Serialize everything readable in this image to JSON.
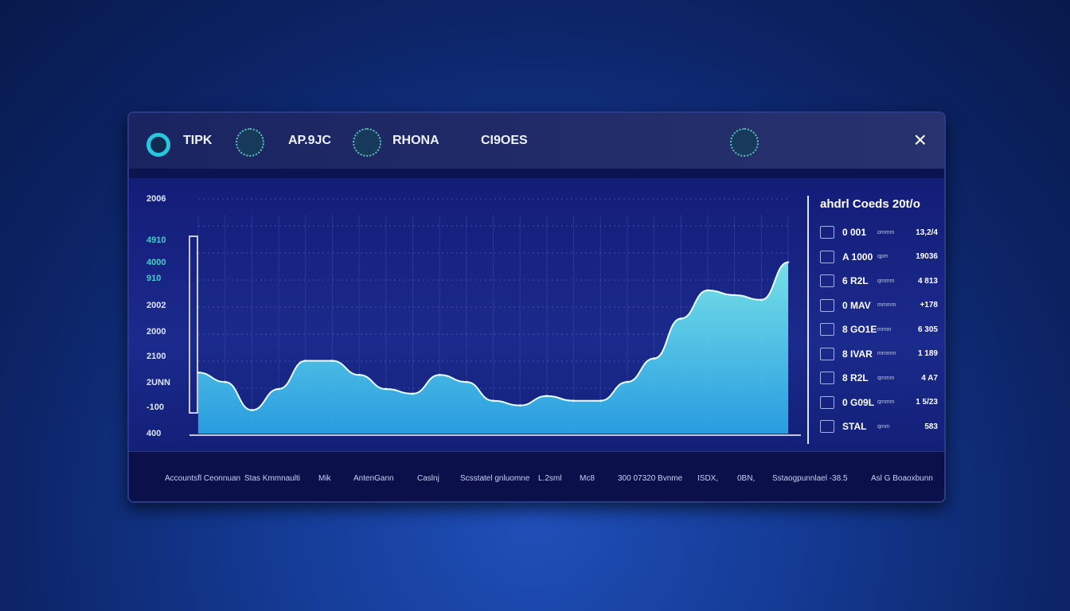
{
  "header": {
    "items": [
      "TIPK",
      "AP.9JC",
      "RHONA",
      "CI9OES"
    ],
    "close_label": "×"
  },
  "y_axis_labels": [
    "2006",
    "4910",
    "4000",
    "910",
    "2002",
    "2000",
    "2100",
    "2UNN",
    "-100",
    "400"
  ],
  "chart_data": {
    "type": "area",
    "title": "",
    "x": [
      0,
      1,
      2,
      3,
      4,
      5,
      6,
      7,
      8,
      9,
      10,
      11,
      12,
      13,
      14,
      15,
      16,
      17,
      18,
      19,
      20,
      21,
      22
    ],
    "values": [
      26,
      22,
      10,
      19,
      31,
      31,
      25,
      19,
      17,
      25,
      22,
      14,
      12,
      16,
      14,
      14,
      22,
      32,
      49,
      61,
      59,
      57,
      73
    ],
    "ylim": [
      0,
      100
    ],
    "grid": true,
    "colors": {
      "fill_top": "#7ef0f0",
      "fill_bottom": "#2aa7e8",
      "accent": "#e060b0"
    }
  },
  "panel": {
    "title": "ahdrl Coeds 20t/o",
    "rows": [
      {
        "name": "0 001",
        "sub": "ommm",
        "value": "13,2/4"
      },
      {
        "name": "A 1000",
        "sub": "qpm",
        "value": "19036"
      },
      {
        "name": "6 R2L",
        "sub": "qmmm",
        "value": "4 813"
      },
      {
        "name": "0 MAV",
        "sub": "mmmm",
        "value": "+178"
      },
      {
        "name": "8 GO1E",
        "sub": "mmm",
        "value": "6 305"
      },
      {
        "name": "8 IVAR",
        "sub": "mmmm",
        "value": "1 189"
      },
      {
        "name": "8 R2L",
        "sub": "qmmm",
        "value": "4 A7"
      },
      {
        "name": "0 G09L",
        "sub": "qmmm",
        "value": "1 5/23"
      },
      {
        "name": "STAL",
        "sub": "qmm",
        "value": "583"
      }
    ]
  },
  "footer": [
    "Accountsfl Ceonnuan",
    "Stas Kmmnaulti",
    "Mik",
    "AntenGann",
    "Caslnj",
    "Scsstatel gnluomne",
    "L.2sml",
    "Mc8",
    "300 07320 Bvnme",
    "ISDX,",
    "0BN,",
    "Sstaogpunnlael -38.5",
    "Asl G Boaoxbunn"
  ]
}
